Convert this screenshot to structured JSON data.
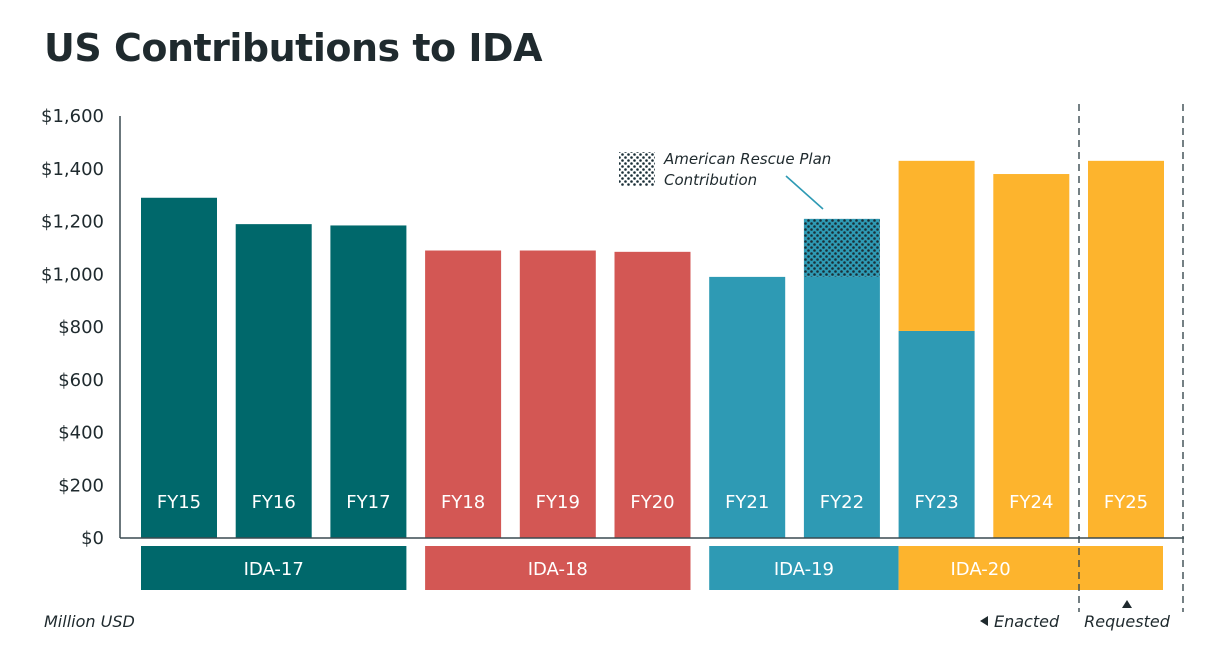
{
  "chart_data": {
    "type": "bar",
    "title": "US Contributions to IDA",
    "unit_note": "Million USD",
    "y_tick_labels": [
      "$0",
      "$200",
      "$400",
      "$600",
      "$800",
      "$1,000",
      "$1,200",
      "$1,400",
      "$1,600"
    ],
    "ylim": [
      0,
      1600
    ],
    "categories": [
      "FY15",
      "FY16",
      "FY17",
      "FY18",
      "FY19",
      "FY20",
      "FY21",
      "FY22",
      "FY23",
      "FY24",
      "FY25"
    ],
    "bars": [
      {
        "label": "FY15",
        "segments": [
          {
            "period": "IDA-17",
            "value": 1290
          }
        ]
      },
      {
        "label": "FY16",
        "segments": [
          {
            "period": "IDA-17",
            "value": 1190
          }
        ]
      },
      {
        "label": "FY17",
        "segments": [
          {
            "period": "IDA-17",
            "value": 1185
          }
        ]
      },
      {
        "label": "FY18",
        "segments": [
          {
            "period": "IDA-18",
            "value": 1090
          }
        ]
      },
      {
        "label": "FY19",
        "segments": [
          {
            "period": "IDA-18",
            "value": 1090
          }
        ]
      },
      {
        "label": "FY20",
        "segments": [
          {
            "period": "IDA-18",
            "value": 1085
          }
        ]
      },
      {
        "label": "FY21",
        "segments": [
          {
            "period": "IDA-19",
            "value": 990
          }
        ]
      },
      {
        "label": "FY22",
        "segments": [
          {
            "period": "IDA-19",
            "value": 990
          },
          {
            "period": "American Rescue Plan Contribution",
            "value": 220
          }
        ]
      },
      {
        "label": "FY23",
        "segments": [
          {
            "period": "IDA-19",
            "value": 785
          },
          {
            "period": "IDA-20",
            "value": 645
          }
        ]
      },
      {
        "label": "FY24",
        "segments": [
          {
            "period": "IDA-20",
            "value": 1380
          }
        ]
      },
      {
        "label": "FY25",
        "segments": [
          {
            "period": "IDA-20",
            "value": 1430
          }
        ]
      }
    ],
    "periods": [
      {
        "label": "IDA-17",
        "color": "#00686b",
        "bar_start": 0,
        "bar_end": 2
      },
      {
        "label": "IDA-18",
        "color": "#d35754",
        "bar_start": 3,
        "bar_end": 5
      },
      {
        "label": "IDA-19",
        "color": "#2e9ab4",
        "bar_start": 6,
        "bar_end": 8,
        "split_end": true
      },
      {
        "label": "IDA-20",
        "color": "#fdb42d",
        "bar_start": 8,
        "bar_end": 10,
        "split_start": true
      }
    ],
    "annotation": {
      "line1": "American Rescue Plan",
      "line2": "Contribution",
      "bar": "FY22"
    },
    "status": {
      "enacted": "Enacted",
      "requested": "Requested"
    },
    "requested_from_bar": "FY25",
    "grid": false
  }
}
